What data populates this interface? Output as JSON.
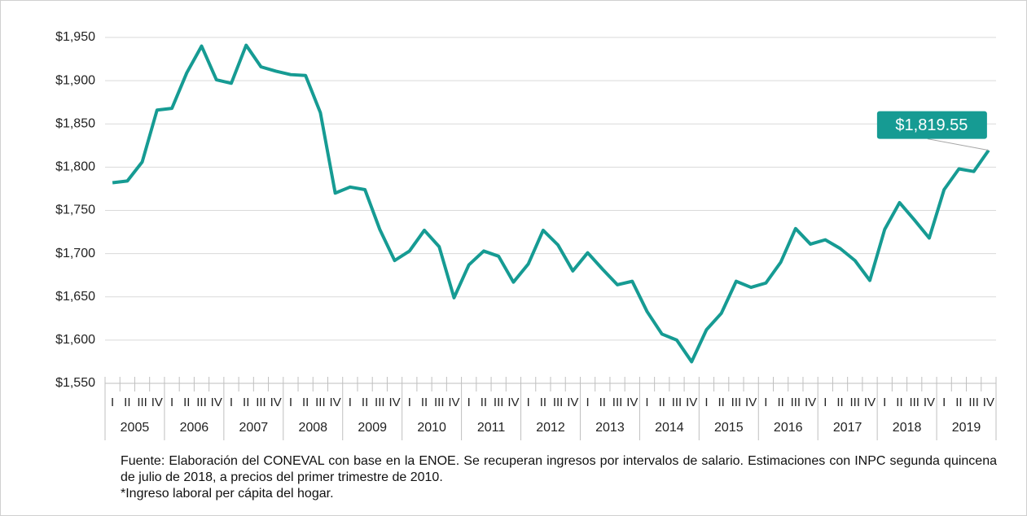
{
  "chart_data": {
    "type": "line",
    "categories": [
      "I",
      "II",
      "III",
      "IV",
      "I",
      "II",
      "III",
      "IV",
      "I",
      "II",
      "III",
      "IV",
      "I",
      "II",
      "III",
      "IV",
      "I",
      "II",
      "III",
      "IV",
      "I",
      "II",
      "III",
      "IV",
      "I",
      "II",
      "III",
      "IV",
      "I",
      "II",
      "III",
      "IV",
      "I",
      "II",
      "III",
      "IV",
      "I",
      "II",
      "III",
      "IV",
      "I",
      "II",
      "III",
      "IV",
      "I",
      "II",
      "III",
      "IV",
      "I",
      "II",
      "III",
      "IV",
      "I",
      "II",
      "III",
      "IV",
      "I",
      "II",
      "III",
      "IV"
    ],
    "years": [
      "2005",
      "2006",
      "2007",
      "2008",
      "2009",
      "2010",
      "2011",
      "2012",
      "2013",
      "2014",
      "2015",
      "2016",
      "2017",
      "2018",
      "2019"
    ],
    "series": [
      {
        "name": "Ingreso laboral per cápita",
        "color": "#169b93",
        "values": [
          1782,
          1784,
          1806,
          1866,
          1868,
          1909,
          1940,
          1901,
          1897,
          1941,
          1916,
          1911,
          1907,
          1906,
          1863,
          1770,
          1777,
          1774,
          1728,
          1692,
          1703,
          1727,
          1708,
          1649,
          1687,
          1703,
          1697,
          1667,
          1688,
          1727,
          1710,
          1680,
          1701,
          1682,
          1664,
          1668,
          1633,
          1607,
          1600,
          1575,
          1612,
          1631,
          1668,
          1661,
          1666,
          1690,
          1729,
          1711,
          1716,
          1706,
          1692,
          1669,
          1728,
          1759,
          1739,
          1718,
          1774,
          1798,
          1795,
          1819.55
        ],
        "value_labels": [
          null,
          null,
          null,
          null,
          null,
          null,
          null,
          null,
          null,
          null,
          null,
          null,
          null,
          null,
          null,
          null,
          null,
          null,
          null,
          null,
          null,
          null,
          null,
          null,
          null,
          null,
          null,
          null,
          null,
          null,
          null,
          null,
          null,
          null,
          null,
          null,
          null,
          null,
          null,
          null,
          null,
          null,
          null,
          null,
          null,
          null,
          null,
          null,
          null,
          null,
          null,
          null,
          null,
          null,
          null,
          null,
          null,
          null,
          null,
          "$1,819.55"
        ]
      }
    ],
    "ylim": [
      1550,
      1950
    ],
    "yticks": [
      {
        "value": 1550,
        "label": "$1,550"
      },
      {
        "value": 1600,
        "label": "$1,600"
      },
      {
        "value": 1650,
        "label": "$1,650"
      },
      {
        "value": 1700,
        "label": "$1,700"
      },
      {
        "value": 1750,
        "label": "$1,750"
      },
      {
        "value": 1800,
        "label": "$1,800"
      },
      {
        "value": 1850,
        "label": "$1,850"
      },
      {
        "value": 1900,
        "label": "$1,900"
      },
      {
        "value": 1950,
        "label": "$1,950"
      }
    ],
    "grid": true,
    "source": "Fuente: Elaboración del CONEVAL con base en la ENOE. Se recuperan ingresos por intervalos de salario. Estimaciones con INPC segunda quincena de julio de 2018, a precios del primer trimestre de 2010.",
    "note": "*Ingreso laboral per cápita del hogar."
  }
}
